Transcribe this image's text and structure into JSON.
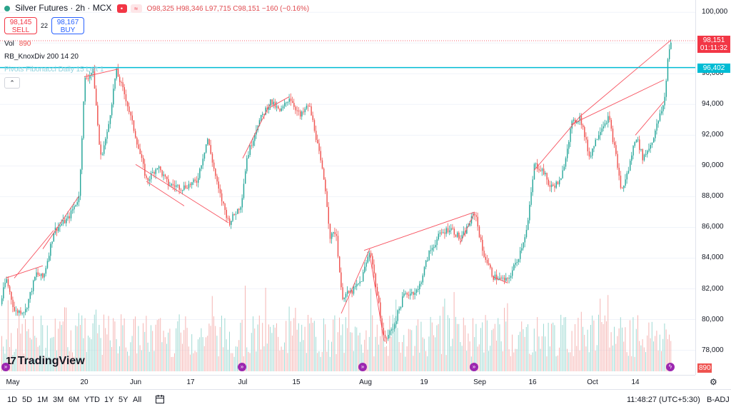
{
  "legend": {
    "title": "Silver Futures · 2h · MCX",
    "ohlc": "O98,325 H98,346 L97,715 C98,151 −160 (−0.16%)"
  },
  "trade": {
    "sell_price": "98,145",
    "sell_label": "SELL",
    "spread": "22",
    "buy_price": "98,167",
    "buy_label": "BUY"
  },
  "indicators": {
    "vol_label": "Vol",
    "vol_value": "890",
    "knox": "RB_KnoxDiv 200 14 20",
    "pivots": "Pivots Fibonacci Daily 15 Left 1"
  },
  "price_axis": {
    "ticks": [
      "100,000",
      "98,000",
      "96,000",
      "94,000",
      "92,000",
      "90,000",
      "88,000",
      "86,000",
      "84,000",
      "82,000",
      "80,000",
      "78,000"
    ],
    "tick_values": [
      100000,
      98000,
      96000,
      94000,
      92000,
      90000,
      88000,
      86000,
      84000,
      82000,
      80000,
      78000
    ],
    "last_price": "98,151",
    "countdown": "01:11:32",
    "pivot_price": "96,402",
    "vol_badge": "890"
  },
  "time_axis": {
    "labels": [
      "May",
      "20",
      "Jun",
      "17",
      "Jul",
      "15",
      "Aug",
      "19",
      "Sep",
      "16",
      "Oct",
      "14"
    ]
  },
  "chart_data": {
    "type": "candlestick",
    "title": "Silver Futures · 2h · MCX",
    "ylim": [
      76400,
      100800
    ],
    "x_labels": [
      "May",
      "20",
      "Jun",
      "17",
      "Jul",
      "15",
      "Aug",
      "19",
      "Sep",
      "16",
      "Oct",
      "14"
    ],
    "last_close": 98151,
    "pivot_level": 96402,
    "path": [
      [
        0,
        81000
      ],
      [
        8,
        82700
      ],
      [
        20,
        80500
      ],
      [
        35,
        80600
      ],
      [
        50,
        83000
      ],
      [
        60,
        82700
      ],
      [
        75,
        85800
      ],
      [
        95,
        86600
      ],
      [
        110,
        88000
      ],
      [
        118,
        95600
      ],
      [
        130,
        96200
      ],
      [
        140,
        90500
      ],
      [
        150,
        92200
      ],
      [
        162,
        96200
      ],
      [
        175,
        94500
      ],
      [
        190,
        91800
      ],
      [
        205,
        89000
      ],
      [
        220,
        90000
      ],
      [
        235,
        88800
      ],
      [
        255,
        88600
      ],
      [
        275,
        89000
      ],
      [
        290,
        91800
      ],
      [
        305,
        88500
      ],
      [
        320,
        86300
      ],
      [
        337,
        87500
      ],
      [
        345,
        90500
      ],
      [
        360,
        92700
      ],
      [
        378,
        94200
      ],
      [
        392,
        93500
      ],
      [
        405,
        94500
      ],
      [
        420,
        93200
      ],
      [
        432,
        94000
      ],
      [
        440,
        92400
      ],
      [
        455,
        88600
      ],
      [
        462,
        85300
      ],
      [
        470,
        85800
      ],
      [
        478,
        81500
      ],
      [
        492,
        81800
      ],
      [
        505,
        82500
      ],
      [
        518,
        84600
      ],
      [
        528,
        81500
      ],
      [
        538,
        78600
      ],
      [
        550,
        79500
      ],
      [
        565,
        81600
      ],
      [
        585,
        81900
      ],
      [
        600,
        84300
      ],
      [
        615,
        85500
      ],
      [
        630,
        86000
      ],
      [
        645,
        85200
      ],
      [
        665,
        87000
      ],
      [
        675,
        84500
      ],
      [
        690,
        82800
      ],
      [
        710,
        82500
      ],
      [
        725,
        84000
      ],
      [
        738,
        86000
      ],
      [
        748,
        90100
      ],
      [
        760,
        89700
      ],
      [
        770,
        88600
      ],
      [
        785,
        89000
      ],
      [
        800,
        92700
      ],
      [
        812,
        93200
      ],
      [
        825,
        90600
      ],
      [
        840,
        92400
      ],
      [
        852,
        93200
      ],
      [
        862,
        90700
      ],
      [
        870,
        88300
      ],
      [
        880,
        89800
      ],
      [
        890,
        92000
      ],
      [
        900,
        90500
      ],
      [
        912,
        91500
      ],
      [
        920,
        92700
      ],
      [
        930,
        94200
      ],
      [
        936,
        97600
      ],
      [
        940,
        98151
      ]
    ],
    "volume": {
      "name": "Vol",
      "last": 890
    },
    "divergence_lines": [
      [
        [
          8,
          82700
        ],
        [
          60,
          83500
        ]
      ],
      [
        [
          20,
          82700
        ],
        [
          75,
          85800
        ]
      ],
      [
        [
          60,
          84600
        ],
        [
          110,
          88000
        ]
      ],
      [
        [
          118,
          95800
        ],
        [
          165,
          96300
        ]
      ],
      [
        [
          190,
          90100
        ],
        [
          320,
          86300
        ]
      ],
      [
        [
          205,
          89000
        ],
        [
          258,
          87400
        ]
      ],
      [
        [
          340,
          90500
        ],
        [
          378,
          94000
        ]
      ],
      [
        [
          378,
          93800
        ],
        [
          405,
          94500
        ]
      ],
      [
        [
          478,
          80400
        ],
        [
          518,
          84600
        ]
      ],
      [
        [
          510,
          84500
        ],
        [
          665,
          87000
        ]
      ],
      [
        [
          518,
          84200
        ],
        [
          538,
          78600
        ]
      ],
      [
        [
          645,
          85000
        ],
        [
          665,
          87000
        ]
      ],
      [
        [
          690,
          82800
        ],
        [
          710,
          82400
        ]
      ],
      [
        [
          748,
          89700
        ],
        [
          812,
          93200
        ]
      ],
      [
        [
          800,
          92700
        ],
        [
          930,
          95600
        ]
      ],
      [
        [
          890,
          92000
        ],
        [
          930,
          94200
        ]
      ],
      [
        [
          812,
          93200
        ],
        [
          940,
          98200
        ]
      ]
    ]
  },
  "bottom_bar": {
    "periods": [
      "1D",
      "5D",
      "1M",
      "3M",
      "6M",
      "YTD",
      "1Y",
      "5Y",
      "All"
    ],
    "clock": "11:48:27 (UTC+5:30)",
    "adj": "B-ADJ"
  },
  "branding": {
    "logo_mark": "17",
    "logo_text": "TradingView"
  },
  "colors": {
    "up": "#26a69a",
    "down": "#ef5350",
    "pivot": "#00bcd4",
    "divergence": "#f7525f",
    "last_price_bg": "#f23645"
  }
}
